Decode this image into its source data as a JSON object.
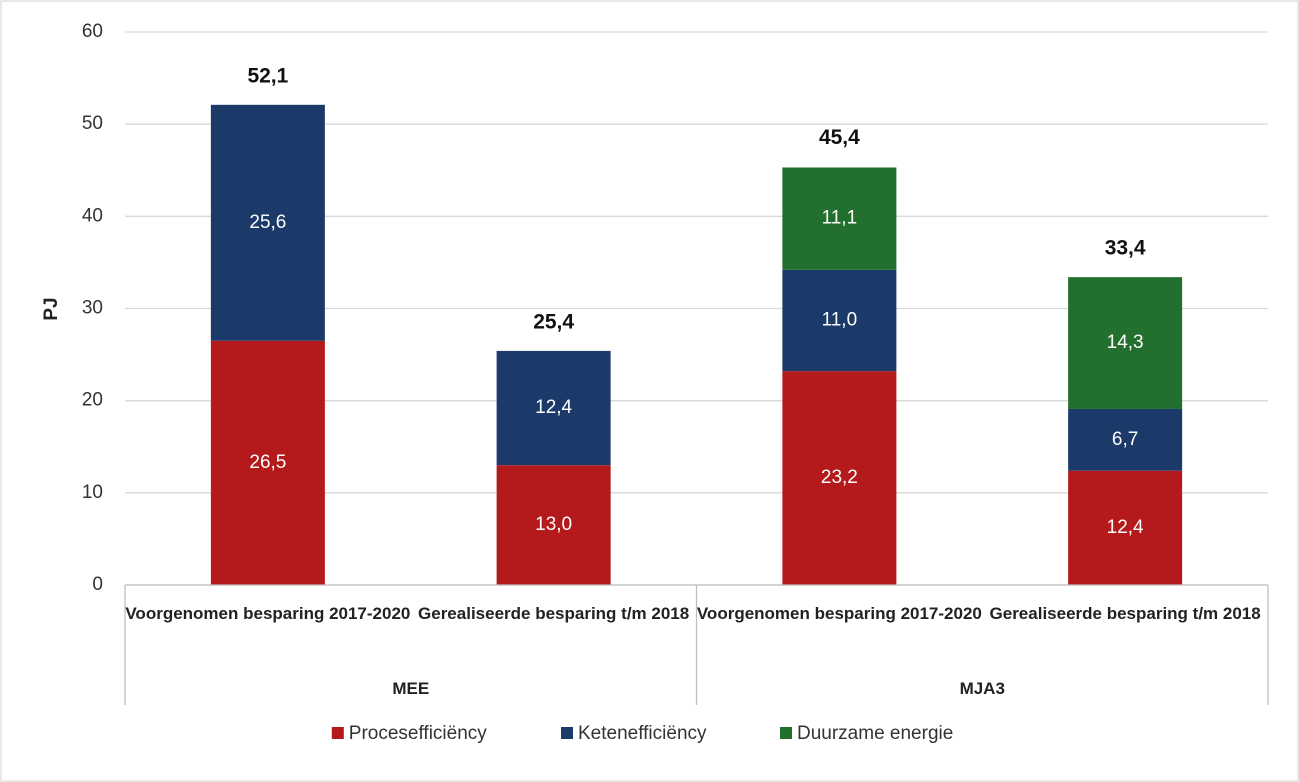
{
  "chart_data": {
    "type": "stacked_bar",
    "y_label": "PJ",
    "categories": [
      "Voorgenomen besparing 2017-2020",
      "Gerealiseerde besparing t/m 2018",
      "Voorgenomen besparing 2017-2020",
      "Gerealiseerde besparing t/m 2018"
    ],
    "groups": [
      "MEE",
      "MJA3"
    ],
    "series": [
      {
        "name": "Procesefficiëncy",
        "color": "#b4191b",
        "values": [
          26.5,
          13.0,
          23.2,
          12.4
        ],
        "value_labels": [
          "26,5",
          "13,0",
          "23,2",
          "12,4"
        ]
      },
      {
        "name": "Ketenefficiëncy",
        "color": "#1b3a6a",
        "values": [
          25.6,
          12.4,
          11.0,
          6.7
        ],
        "value_labels": [
          "25,6",
          "12,4",
          "11,0",
          "6,7"
        ]
      },
      {
        "name": "Duurzame energie",
        "color": "#236f2e",
        "values": [
          null,
          null,
          11.1,
          14.3
        ],
        "value_labels": [
          null,
          null,
          "11,1",
          "14,3"
        ]
      }
    ],
    "totals": [
      52.1,
      25.4,
      45.4,
      33.4
    ],
    "totals_labels": [
      "52,1",
      "25,4",
      "45,4",
      "33,4"
    ],
    "ylim": [
      0,
      60
    ],
    "yticks": [
      0,
      10,
      20,
      30,
      40,
      50,
      60
    ],
    "grid": true
  }
}
